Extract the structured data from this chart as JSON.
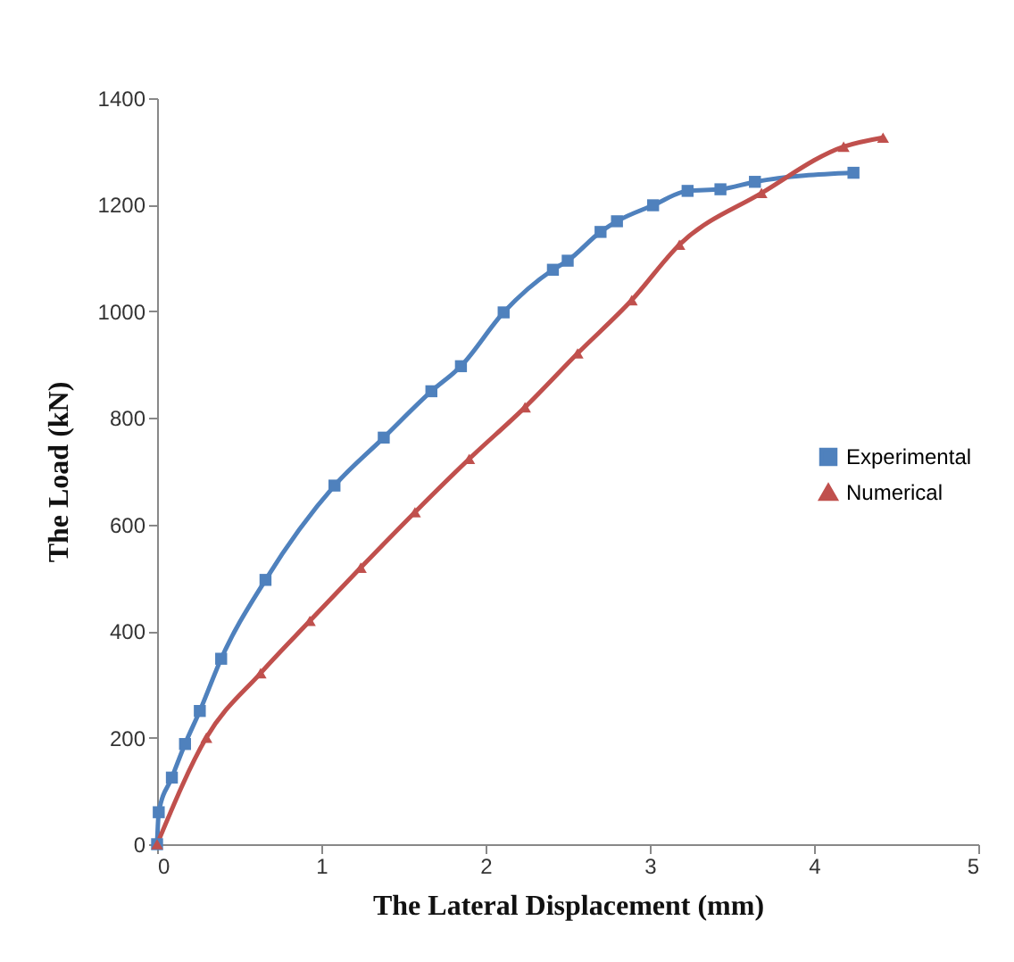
{
  "chart_data": {
    "type": "line",
    "xlabel": "The Lateral Displacement (mm)",
    "ylabel": "The Load (kN)",
    "xlim": [
      0,
      5
    ],
    "xticks": [
      0,
      1,
      2,
      3,
      4,
      5
    ],
    "ylim": [
      0,
      1400
    ],
    "yticks": [
      0,
      200,
      400,
      600,
      800,
      1000,
      1200,
      1400
    ],
    "grid": false,
    "legend": "right",
    "series": [
      {
        "name": "Experimental",
        "color": "#4f81bd",
        "marker": "square",
        "x": [
          0,
          0.01,
          0.09,
          0.17,
          0.26,
          0.39,
          0.66,
          1.08,
          1.38,
          1.67,
          1.85,
          2.11,
          2.41,
          2.5,
          2.7,
          2.8,
          3.02,
          3.23,
          3.43,
          3.64,
          4.24
        ],
        "values": [
          0,
          60,
          125,
          188,
          250,
          348,
          496,
          673,
          763,
          850,
          897,
          998,
          1078,
          1095,
          1149,
          1169,
          1199,
          1226,
          1229,
          1243,
          1260
        ]
      },
      {
        "name": "Numerical",
        "color": "#c0504d",
        "marker": "triangle",
        "x": [
          0,
          0.3,
          0.63,
          0.93,
          1.24,
          1.57,
          1.9,
          2.24,
          2.56,
          2.89,
          3.18,
          3.68,
          4.18,
          4.42
        ],
        "values": [
          0,
          200,
          321,
          419,
          519,
          623,
          723,
          820,
          921,
          1021,
          1125,
          1222,
          1309,
          1326
        ]
      }
    ]
  }
}
